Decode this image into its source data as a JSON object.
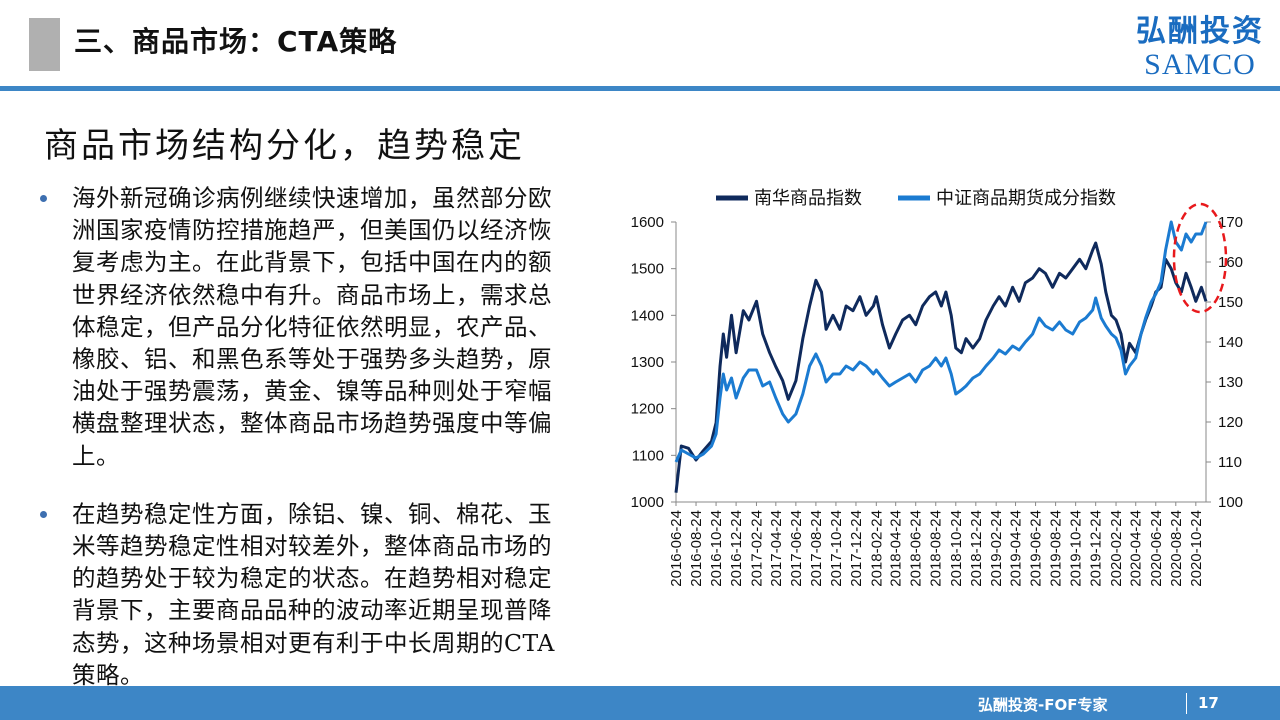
{
  "header": {
    "section_title": "三、商品市场：CTA策略",
    "logo_cn": "弘酬投资",
    "logo_en": "SAMCO"
  },
  "subtitle": "商品市场结构分化，趋势稳定",
  "bullets": [
    "海外新冠确诊病例继续快速增加，虽然部分欧洲国家疫情防控措施趋严，但美国仍以经济恢复考虑为主。在此背景下，包括中国在内的额世界经济依然稳中有升。商品市场上，需求总体稳定，但产品分化特征依然明显，农产品、橡胶、铝、和黑色系等处于强势多头趋势，原油处于强势震荡，黄金、镍等品种则处于窄幅横盘整理状态，整体商品市场趋势强度中等偏上。",
    "在趋势稳定性方面，除铝、镍、铜、棉花、玉米等趋势稳定性相对较差外，整体商品市场的的趋势处于较为稳定的状态。在趋势相对稳定背景下，主要商品品种的波动率近期呈现普降态势，这种场景相对更有利于中长周期的CTA策略。"
  ],
  "footer": {
    "text": "弘酬投资-FOF专家",
    "page": "17"
  },
  "colors": {
    "accent": "#3d86c6",
    "series1": "#0f2a5c",
    "series2": "#1b7bd1",
    "highlight": "#e8191c"
  },
  "chart_data": {
    "type": "line",
    "series": [
      {
        "name": "南华商品指数",
        "axis": "left",
        "points": [
          [
            "2016-06-24",
            1020
          ],
          [
            "2016-07-10",
            1120
          ],
          [
            "2016-08-01",
            1115
          ],
          [
            "2016-08-24",
            1090
          ],
          [
            "2016-09-15",
            1110
          ],
          [
            "2016-10-10",
            1130
          ],
          [
            "2016-10-24",
            1170
          ],
          [
            "2016-11-05",
            1290
          ],
          [
            "2016-11-15",
            1360
          ],
          [
            "2016-11-25",
            1310
          ],
          [
            "2016-12-10",
            1400
          ],
          [
            "2016-12-24",
            1320
          ],
          [
            "2017-01-15",
            1410
          ],
          [
            "2017-02-01",
            1390
          ],
          [
            "2017-02-24",
            1430
          ],
          [
            "2017-03-15",
            1360
          ],
          [
            "2017-04-05",
            1320
          ],
          [
            "2017-04-24",
            1290
          ],
          [
            "2017-05-15",
            1260
          ],
          [
            "2017-06-01",
            1220
          ],
          [
            "2017-06-24",
            1260
          ],
          [
            "2017-07-15",
            1350
          ],
          [
            "2017-08-05",
            1420
          ],
          [
            "2017-08-24",
            1475
          ],
          [
            "2017-09-10",
            1450
          ],
          [
            "2017-09-24",
            1370
          ],
          [
            "2017-10-15",
            1400
          ],
          [
            "2017-11-05",
            1370
          ],
          [
            "2017-11-24",
            1420
          ],
          [
            "2017-12-15",
            1410
          ],
          [
            "2018-01-05",
            1440
          ],
          [
            "2018-01-24",
            1400
          ],
          [
            "2018-02-15",
            1420
          ],
          [
            "2018-02-24",
            1440
          ],
          [
            "2018-03-15",
            1380
          ],
          [
            "2018-04-05",
            1330
          ],
          [
            "2018-04-24",
            1360
          ],
          [
            "2018-05-15",
            1390
          ],
          [
            "2018-06-05",
            1400
          ],
          [
            "2018-06-24",
            1380
          ],
          [
            "2018-07-15",
            1420
          ],
          [
            "2018-08-05",
            1440
          ],
          [
            "2018-08-24",
            1450
          ],
          [
            "2018-09-10",
            1420
          ],
          [
            "2018-09-24",
            1450
          ],
          [
            "2018-10-10",
            1400
          ],
          [
            "2018-10-24",
            1330
          ],
          [
            "2018-11-10",
            1320
          ],
          [
            "2018-11-24",
            1350
          ],
          [
            "2018-12-15",
            1330
          ],
          [
            "2019-01-05",
            1350
          ],
          [
            "2019-01-24",
            1390
          ],
          [
            "2019-02-15",
            1420
          ],
          [
            "2019-03-05",
            1440
          ],
          [
            "2019-03-24",
            1420
          ],
          [
            "2019-04-15",
            1460
          ],
          [
            "2019-05-05",
            1430
          ],
          [
            "2019-05-24",
            1470
          ],
          [
            "2019-06-15",
            1480
          ],
          [
            "2019-07-05",
            1500
          ],
          [
            "2019-07-24",
            1490
          ],
          [
            "2019-08-15",
            1460
          ],
          [
            "2019-09-05",
            1490
          ],
          [
            "2019-09-24",
            1480
          ],
          [
            "2019-10-15",
            1500
          ],
          [
            "2019-11-05",
            1520
          ],
          [
            "2019-11-24",
            1500
          ],
          [
            "2019-12-15",
            1540
          ],
          [
            "2019-12-24",
            1555
          ],
          [
            "2020-01-10",
            1510
          ],
          [
            "2020-01-24",
            1450
          ],
          [
            "2020-02-10",
            1400
          ],
          [
            "2020-02-24",
            1390
          ],
          [
            "2020-03-10",
            1360
          ],
          [
            "2020-03-24",
            1300
          ],
          [
            "2020-04-05",
            1340
          ],
          [
            "2020-04-24",
            1320
          ],
          [
            "2020-05-10",
            1360
          ],
          [
            "2020-05-24",
            1390
          ],
          [
            "2020-06-10",
            1420
          ],
          [
            "2020-06-24",
            1450
          ],
          [
            "2020-07-10",
            1460
          ],
          [
            "2020-07-24",
            1520
          ],
          [
            "2020-08-10",
            1500
          ],
          [
            "2020-08-24",
            1470
          ],
          [
            "2020-09-10",
            1450
          ],
          [
            "2020-09-24",
            1490
          ],
          [
            "2020-10-10",
            1460
          ],
          [
            "2020-10-24",
            1430
          ],
          [
            "2020-11-10",
            1460
          ],
          [
            "2020-11-24",
            1430
          ]
        ]
      },
      {
        "name": "中证商品期货成分指数",
        "axis": "right",
        "points": [
          [
            "2016-06-24",
            110
          ],
          [
            "2016-07-10",
            113
          ],
          [
            "2016-08-01",
            112
          ],
          [
            "2016-08-24",
            111
          ],
          [
            "2016-09-15",
            112
          ],
          [
            "2016-10-10",
            114
          ],
          [
            "2016-10-24",
            117
          ],
          [
            "2016-11-05",
            126
          ],
          [
            "2016-11-15",
            132
          ],
          [
            "2016-11-25",
            128
          ],
          [
            "2016-12-10",
            131
          ],
          [
            "2016-12-24",
            126
          ],
          [
            "2017-01-15",
            131
          ],
          [
            "2017-02-01",
            133
          ],
          [
            "2017-02-24",
            133
          ],
          [
            "2017-03-15",
            129
          ],
          [
            "2017-04-05",
            130
          ],
          [
            "2017-04-24",
            126
          ],
          [
            "2017-05-15",
            122
          ],
          [
            "2017-06-01",
            120
          ],
          [
            "2017-06-24",
            122
          ],
          [
            "2017-07-15",
            127
          ],
          [
            "2017-08-05",
            134
          ],
          [
            "2017-08-24",
            137
          ],
          [
            "2017-09-10",
            134
          ],
          [
            "2017-09-24",
            130
          ],
          [
            "2017-10-15",
            132
          ],
          [
            "2017-11-05",
            132
          ],
          [
            "2017-11-24",
            134
          ],
          [
            "2017-12-15",
            133
          ],
          [
            "2018-01-05",
            135
          ],
          [
            "2018-01-24",
            134
          ],
          [
            "2018-02-15",
            132
          ],
          [
            "2018-02-24",
            133
          ],
          [
            "2018-03-15",
            131
          ],
          [
            "2018-04-05",
            129
          ],
          [
            "2018-04-24",
            130
          ],
          [
            "2018-05-15",
            131
          ],
          [
            "2018-06-05",
            132
          ],
          [
            "2018-06-24",
            130
          ],
          [
            "2018-07-15",
            133
          ],
          [
            "2018-08-05",
            134
          ],
          [
            "2018-08-24",
            136
          ],
          [
            "2018-09-10",
            134
          ],
          [
            "2018-09-24",
            136
          ],
          [
            "2018-10-10",
            132
          ],
          [
            "2018-10-24",
            127
          ],
          [
            "2018-11-10",
            128
          ],
          [
            "2018-11-24",
            129
          ],
          [
            "2018-12-15",
            131
          ],
          [
            "2019-01-05",
            132
          ],
          [
            "2019-01-24",
            134
          ],
          [
            "2019-02-15",
            136
          ],
          [
            "2019-03-05",
            138
          ],
          [
            "2019-03-24",
            137
          ],
          [
            "2019-04-15",
            139
          ],
          [
            "2019-05-05",
            138
          ],
          [
            "2019-05-24",
            140
          ],
          [
            "2019-06-15",
            142
          ],
          [
            "2019-07-05",
            146
          ],
          [
            "2019-07-24",
            144
          ],
          [
            "2019-08-15",
            143
          ],
          [
            "2019-09-05",
            145
          ],
          [
            "2019-09-24",
            143
          ],
          [
            "2019-10-15",
            142
          ],
          [
            "2019-11-05",
            145
          ],
          [
            "2019-11-24",
            146
          ],
          [
            "2019-12-15",
            148
          ],
          [
            "2019-12-24",
            151
          ],
          [
            "2020-01-10",
            146
          ],
          [
            "2020-01-24",
            144
          ],
          [
            "2020-02-10",
            142
          ],
          [
            "2020-02-24",
            141
          ],
          [
            "2020-03-10",
            138
          ],
          [
            "2020-03-24",
            132
          ],
          [
            "2020-04-05",
            134
          ],
          [
            "2020-04-24",
            136
          ],
          [
            "2020-05-10",
            142
          ],
          [
            "2020-05-24",
            146
          ],
          [
            "2020-06-10",
            150
          ],
          [
            "2020-06-24",
            152
          ],
          [
            "2020-07-10",
            155
          ],
          [
            "2020-07-24",
            163
          ],
          [
            "2020-08-10",
            170
          ],
          [
            "2020-08-24",
            165
          ],
          [
            "2020-09-10",
            163
          ],
          [
            "2020-09-24",
            167
          ],
          [
            "2020-10-10",
            165
          ],
          [
            "2020-10-24",
            167
          ],
          [
            "2020-11-10",
            167
          ],
          [
            "2020-11-24",
            170
          ]
        ]
      }
    ],
    "x_ticks": [
      "2016-06-24",
      "2016-08-24",
      "2016-10-24",
      "2016-12-24",
      "2017-02-24",
      "2017-04-24",
      "2017-06-24",
      "2017-08-24",
      "2017-10-24",
      "2017-12-24",
      "2018-02-24",
      "2018-04-24",
      "2018-06-24",
      "2018-08-24",
      "2018-10-24",
      "2018-12-24",
      "2019-02-24",
      "2019-04-24",
      "2019-06-24",
      "2019-08-24",
      "2019-10-24",
      "2019-12-24",
      "2020-02-24",
      "2020-04-24",
      "2020-06-24",
      "2020-08-24",
      "2020-10-24"
    ],
    "y_left": {
      "min": 1000,
      "max": 1600,
      "ticks": [
        1000,
        1100,
        1200,
        1300,
        1400,
        1500,
        1600
      ]
    },
    "y_right": {
      "min": 100,
      "max": 170,
      "ticks": [
        100,
        110,
        120,
        130,
        140,
        150,
        160,
        170
      ]
    },
    "x_range": [
      "2016-06-24",
      "2020-11-24"
    ],
    "legend_position": "top",
    "grid": false,
    "annotation": "red dashed ellipse around the most recent highs on the right"
  }
}
